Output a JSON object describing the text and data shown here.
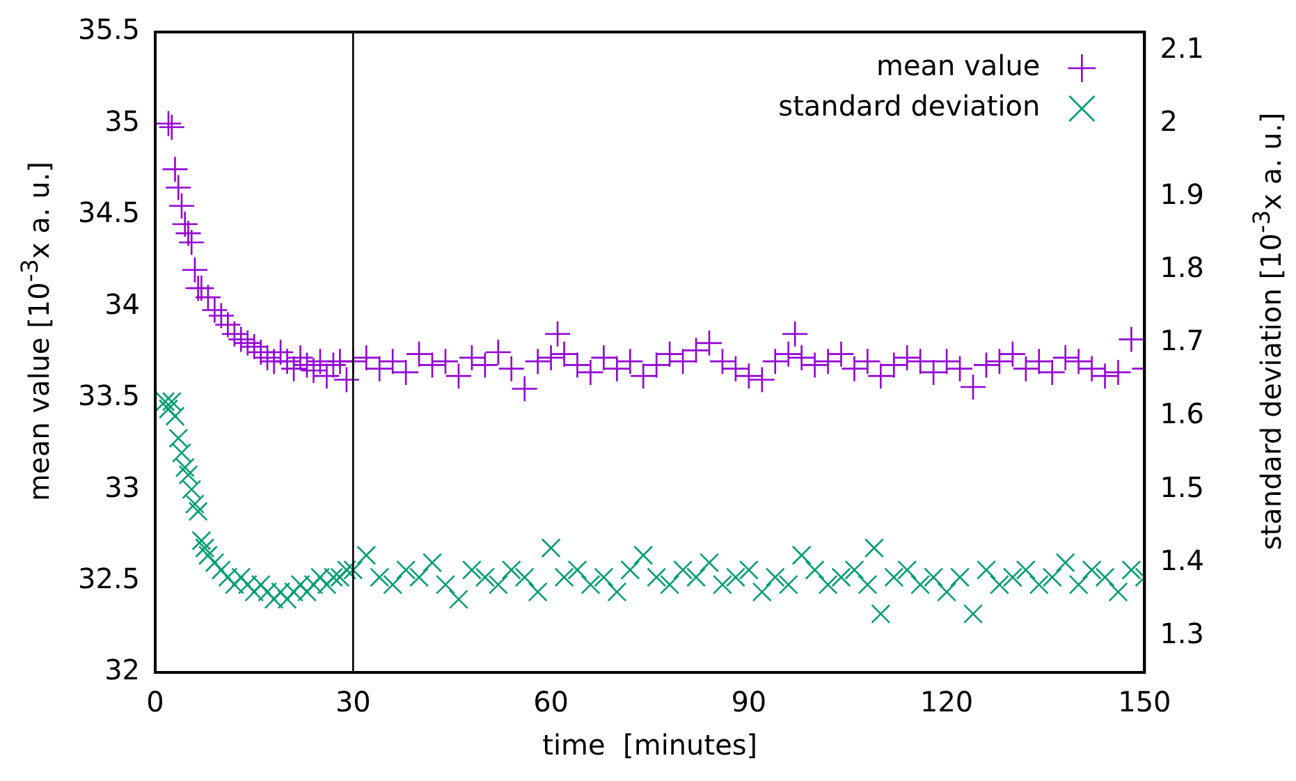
{
  "chart_data": {
    "type": "scatter",
    "xlabel": "time  [minutes]",
    "ylabel": "mean value  [10$^{-3}$x a. u.]",
    "y2label": "standard deviation  [10$^{-3}$x a. u.]",
    "xlim": [
      0,
      150
    ],
    "xticks": [
      0,
      30,
      60,
      90,
      120,
      150
    ],
    "ylim": [
      32,
      35.5
    ],
    "yticks": [
      32,
      32.5,
      33,
      33.5,
      34,
      34.5,
      35,
      35.5
    ],
    "y2lim": [
      1.25,
      2.125
    ],
    "y2ticks": [
      1.3,
      1.4,
      1.5,
      1.6,
      1.7,
      1.8,
      1.9,
      2,
      2.1
    ],
    "legend": "top right",
    "grid": false,
    "ref_lines": [
      {
        "axis": "x",
        "value": 30,
        "color": "#000000"
      }
    ],
    "series": [
      {
        "name": "mean value",
        "color": "#9400d3",
        "marker": "cross",
        "x": [
          2,
          2.5,
          3,
          3.5,
          4,
          4.5,
          5,
          5.5,
          6,
          6.5,
          7,
          8,
          9,
          10,
          11,
          12,
          13,
          14,
          15,
          16,
          17,
          18,
          19,
          20,
          21,
          22,
          23,
          24,
          25,
          26,
          27,
          28,
          29,
          30,
          32,
          34,
          36,
          38,
          40,
          42,
          44,
          46,
          48,
          50,
          52,
          54,
          56,
          58,
          60,
          61,
          62,
          64,
          66,
          68,
          70,
          72,
          74,
          76,
          78,
          80,
          82,
          84,
          86,
          88,
          90,
          92,
          94,
          96,
          97,
          98,
          100,
          102,
          104,
          106,
          108,
          110,
          112,
          114,
          116,
          118,
          120,
          122,
          124,
          126,
          128,
          130,
          132,
          134,
          136,
          138,
          140,
          142,
          144,
          146,
          148,
          150
        ],
        "values": [
          35.0,
          34.98,
          34.75,
          34.65,
          34.55,
          34.45,
          34.4,
          34.35,
          34.2,
          34.1,
          34.1,
          34.05,
          33.98,
          33.95,
          33.9,
          33.85,
          33.82,
          33.8,
          33.78,
          33.75,
          33.72,
          33.7,
          33.75,
          33.7,
          33.66,
          33.72,
          33.68,
          33.65,
          33.7,
          33.62,
          33.68,
          33.7,
          33.6,
          33.7,
          33.72,
          33.66,
          33.7,
          33.64,
          33.74,
          33.68,
          33.7,
          33.62,
          33.72,
          33.68,
          33.75,
          33.66,
          33.55,
          33.7,
          33.72,
          33.85,
          33.74,
          33.68,
          33.64,
          33.72,
          33.66,
          33.7,
          33.62,
          33.68,
          33.74,
          33.7,
          33.76,
          33.8,
          33.7,
          33.66,
          33.62,
          33.6,
          33.7,
          33.74,
          33.85,
          33.72,
          33.68,
          33.7,
          33.74,
          33.66,
          33.7,
          33.62,
          33.68,
          33.72,
          33.7,
          33.64,
          33.7,
          33.66,
          33.56,
          33.68,
          33.7,
          33.74,
          33.66,
          33.7,
          33.64,
          33.72,
          33.7,
          33.66,
          33.62,
          33.64,
          33.82,
          33.66
        ]
      },
      {
        "name": "standard deviation",
        "color": "#009e73",
        "marker": "x",
        "axis": "y2",
        "x": [
          1.5,
          2,
          2.5,
          3,
          3.5,
          4,
          4.5,
          5,
          5.5,
          6,
          6.5,
          7,
          7.5,
          8,
          9,
          10,
          11,
          12,
          13,
          14,
          15,
          16,
          17,
          18,
          19,
          20,
          21,
          22,
          23,
          24,
          25,
          26,
          27,
          28,
          29,
          30,
          32,
          34,
          36,
          38,
          40,
          42,
          44,
          46,
          48,
          50,
          52,
          54,
          56,
          58,
          60,
          62,
          64,
          66,
          68,
          70,
          72,
          74,
          76,
          78,
          80,
          82,
          84,
          86,
          88,
          90,
          92,
          94,
          96,
          98,
          100,
          102,
          104,
          106,
          108,
          109,
          110,
          112,
          114,
          116,
          118,
          120,
          122,
          124,
          126,
          128,
          130,
          132,
          134,
          136,
          138,
          140,
          142,
          144,
          146,
          148,
          150
        ],
        "values": [
          1.62,
          1.61,
          1.62,
          1.6,
          1.57,
          1.55,
          1.53,
          1.52,
          1.5,
          1.48,
          1.47,
          1.43,
          1.42,
          1.41,
          1.4,
          1.39,
          1.38,
          1.37,
          1.38,
          1.37,
          1.36,
          1.37,
          1.36,
          1.35,
          1.36,
          1.35,
          1.36,
          1.37,
          1.36,
          1.37,
          1.38,
          1.37,
          1.38,
          1.38,
          1.39,
          1.39,
          1.41,
          1.38,
          1.37,
          1.39,
          1.38,
          1.4,
          1.37,
          1.35,
          1.39,
          1.38,
          1.37,
          1.39,
          1.38,
          1.36,
          1.42,
          1.38,
          1.39,
          1.37,
          1.38,
          1.36,
          1.39,
          1.41,
          1.38,
          1.37,
          1.39,
          1.38,
          1.4,
          1.37,
          1.38,
          1.39,
          1.36,
          1.38,
          1.37,
          1.41,
          1.39,
          1.37,
          1.38,
          1.39,
          1.37,
          1.42,
          1.33,
          1.38,
          1.39,
          1.37,
          1.38,
          1.36,
          1.38,
          1.33,
          1.39,
          1.37,
          1.38,
          1.39,
          1.37,
          1.38,
          1.4,
          1.37,
          1.39,
          1.38,
          1.36,
          1.39,
          1.38
        ]
      }
    ]
  }
}
